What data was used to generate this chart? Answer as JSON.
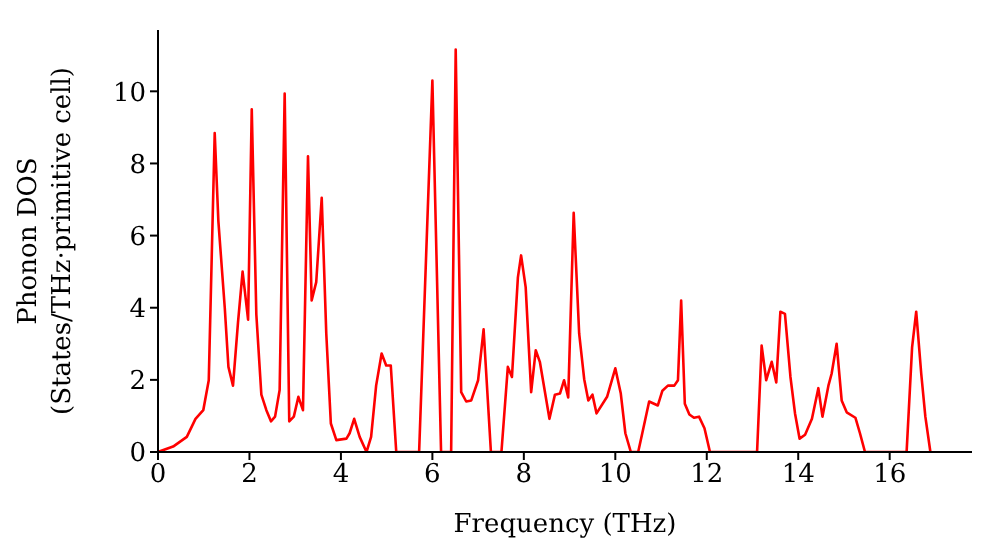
{
  "chart_data": {
    "type": "line",
    "xlabel": "Frequency (THz)",
    "ylabel": "Phonon DOS\n(States/THz·primitive cell)",
    "xlim": [
      0,
      17.8
    ],
    "xticks": [
      0,
      2,
      4,
      6,
      8,
      10,
      12,
      14,
      16
    ],
    "ylim": [
      0,
      11.7
    ],
    "yticks": [
      0,
      2,
      4,
      6,
      8,
      10
    ],
    "grid": false,
    "legend": false,
    "marker": "none",
    "line_style": "solid",
    "series": [
      {
        "color": "#ff0000",
        "x": [
          0,
          0.33,
          0.63,
          0.82,
          0.99,
          1.11,
          1.24,
          1.32,
          1.46,
          1.54,
          1.64,
          1.75,
          1.85,
          1.97,
          2.05,
          2.15,
          2.26,
          2.37,
          2.47,
          2.56,
          2.66,
          2.77,
          2.87,
          2.97,
          3.07,
          3.17,
          3.28,
          3.36,
          3.46,
          3.58,
          3.68,
          3.78,
          3.9,
          4.12,
          4.19,
          4.29,
          4.41,
          4.56,
          4.66,
          4.77,
          4.89,
          4.99,
          5.09,
          5.21,
          5.71,
          6.0,
          6.19,
          6.41,
          6.51,
          6.63,
          6.74,
          6.85,
          7.0,
          7.12,
          7.28,
          7.51,
          7.65,
          7.74,
          7.87,
          7.94,
          8.04,
          8.16,
          8.26,
          8.35,
          8.56,
          8.68,
          8.79,
          8.88,
          8.97,
          9.09,
          9.21,
          9.32,
          9.41,
          9.5,
          9.59,
          9.82,
          10.0,
          10.12,
          10.22,
          10.34,
          10.5,
          10.59,
          10.74,
          10.93,
          11.03,
          11.15,
          11.29,
          11.37,
          11.44,
          11.52,
          11.62,
          11.72,
          11.83,
          11.95,
          12.07,
          13.1,
          13.2,
          13.3,
          13.42,
          13.52,
          13.61,
          13.71,
          13.83,
          13.93,
          14.03,
          14.15,
          14.3,
          14.44,
          14.53,
          14.66,
          14.73,
          14.84,
          14.95,
          15.06,
          15.25,
          15.35,
          15.46,
          16.37,
          16.49,
          16.58,
          16.69,
          16.78,
          16.89
        ],
        "values": [
          0,
          0.15,
          0.42,
          0.92,
          1.16,
          1.99,
          8.84,
          6.4,
          4.0,
          2.36,
          1.84,
          3.6,
          5.0,
          3.67,
          9.5,
          3.82,
          1.59,
          1.16,
          0.85,
          0.98,
          1.72,
          9.94,
          0.85,
          0.98,
          1.53,
          1.16,
          8.2,
          4.2,
          4.71,
          7.05,
          3.28,
          0.79,
          0.33,
          0.37,
          0.52,
          0.92,
          0.42,
          0,
          0.42,
          1.84,
          2.73,
          2.4,
          2.4,
          0,
          0,
          10.3,
          0,
          0,
          11.16,
          1.66,
          1.4,
          1.43,
          1.99,
          3.4,
          0,
          0,
          2.36,
          2.08,
          4.84,
          5.45,
          4.57,
          1.66,
          2.82,
          2.5,
          0.92,
          1.59,
          1.62,
          1.99,
          1.51,
          6.63,
          3.28,
          2.02,
          1.43,
          1.59,
          1.07,
          1.53,
          2.32,
          1.62,
          0.52,
          0,
          0,
          0.52,
          1.4,
          1.29,
          1.7,
          1.84,
          1.84,
          1.99,
          4.2,
          1.34,
          1.04,
          0.95,
          0.98,
          0.66,
          0,
          0,
          2.95,
          1.99,
          2.5,
          1.93,
          3.89,
          3.83,
          2.08,
          1.07,
          0.37,
          0.48,
          0.92,
          1.77,
          0.98,
          1.84,
          2.17,
          3.0,
          1.43,
          1.1,
          0.95,
          0.52,
          0,
          0,
          2.9,
          3.89,
          2.17,
          0.98,
          0
        ]
      }
    ]
  }
}
